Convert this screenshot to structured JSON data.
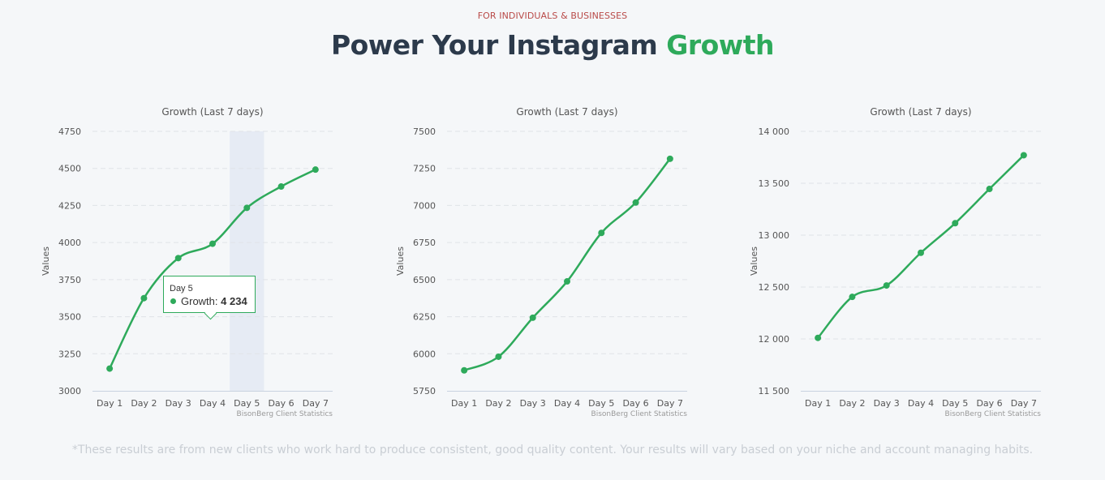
{
  "header": {
    "eyebrow": "FOR INDIVIDUALS & BUSINESSES",
    "title_main": "Power Your Instagram",
    "title_accent": "Growth"
  },
  "colors": {
    "accent": "#2eaa5b",
    "title": "#2c3a4b",
    "eyebrow": "#b94a48",
    "highlight_band": "#e6ebf4"
  },
  "chart_data": [
    {
      "type": "line",
      "title": "Growth (Last 7 days)",
      "ylabel": "Values",
      "credits": "BisonBerg Client Statistics",
      "categories": [
        "Day 1",
        "Day 2",
        "Day 3",
        "Day 4",
        "Day 5",
        "Day 6",
        "Day 7"
      ],
      "series": [
        {
          "name": "Growth",
          "values": [
            3150,
            3625,
            3895,
            3992,
            4234,
            4378,
            4492
          ]
        }
      ],
      "ylim": [
        3000,
        4750
      ],
      "yticks": [
        3000,
        3250,
        3500,
        3750,
        4000,
        4250,
        4500,
        4750
      ],
      "ytick_labels": [
        "3000",
        "3250",
        "3500",
        "3750",
        "4000",
        "4250",
        "4500",
        "4750"
      ],
      "highlight_category": "Day 5",
      "grid": true,
      "tooltip": {
        "category": "Day 5",
        "series": "Growth",
        "value": "4 234"
      }
    },
    {
      "type": "line",
      "title": "Growth (Last 7 days)",
      "ylabel": "Values",
      "credits": "BisonBerg Client Statistics",
      "categories": [
        "Day 1",
        "Day 2",
        "Day 3",
        "Day 4",
        "Day 5",
        "Day 6",
        "Day 7"
      ],
      "series": [
        {
          "name": "Growth",
          "values": [
            5888,
            5980,
            6243,
            6488,
            6815,
            7020,
            7315
          ]
        }
      ],
      "ylim": [
        5750,
        7500
      ],
      "yticks": [
        5750,
        6000,
        6250,
        6500,
        6750,
        7000,
        7250,
        7500
      ],
      "ytick_labels": [
        "5750",
        "6000",
        "6250",
        "6500",
        "6750",
        "7000",
        "7250",
        "7500"
      ],
      "grid": true
    },
    {
      "type": "line",
      "title": "Growth (Last 7 days)",
      "ylabel": "Values",
      "credits": "BisonBerg Client Statistics",
      "categories": [
        "Day 1",
        "Day 2",
        "Day 3",
        "Day 4",
        "Day 5",
        "Day 6",
        "Day 7"
      ],
      "series": [
        {
          "name": "Growth",
          "values": [
            12010,
            12405,
            12515,
            12830,
            13115,
            13445,
            13770
          ]
        }
      ],
      "ylim": [
        11500,
        14000
      ],
      "yticks": [
        11500,
        12000,
        12500,
        13000,
        13500,
        14000
      ],
      "ytick_labels": [
        "11 500",
        "12 000",
        "12 500",
        "13 000",
        "13 500",
        "14 000"
      ],
      "grid": true
    }
  ],
  "footnote": "*These results are from new clients who work hard to produce consistent, good quality content. Your results will vary based on your niche and account managing habits."
}
